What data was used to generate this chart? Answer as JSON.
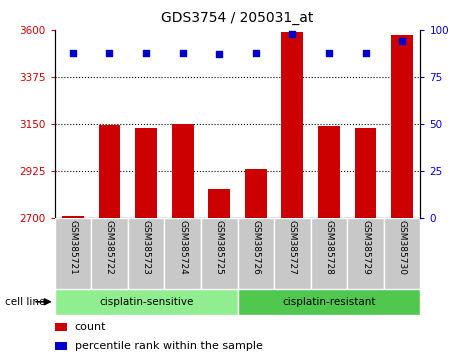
{
  "title": "GDS3754 / 205031_at",
  "samples": [
    "GSM385721",
    "GSM385722",
    "GSM385723",
    "GSM385724",
    "GSM385725",
    "GSM385726",
    "GSM385727",
    "GSM385728",
    "GSM385729",
    "GSM385730"
  ],
  "counts": [
    2710,
    3143,
    3130,
    3150,
    2840,
    2935,
    3590,
    3140,
    3130,
    3575
  ],
  "percentile_ranks": [
    88,
    88,
    88,
    88,
    87,
    88,
    98,
    88,
    88,
    94
  ],
  "ylim_left": [
    2700,
    3600
  ],
  "yticks_left": [
    2700,
    2925,
    3150,
    3375,
    3600
  ],
  "ylim_right": [
    0,
    100
  ],
  "yticks_right": [
    0,
    25,
    50,
    75,
    100
  ],
  "bar_color": "#cc0000",
  "dot_color": "#0000cc",
  "bar_width": 0.6,
  "groups": [
    {
      "label": "cisplatin-sensitive",
      "start": 0,
      "end": 5,
      "color": "#90ee90"
    },
    {
      "label": "cisplatin-resistant",
      "start": 5,
      "end": 10,
      "color": "#50c850"
    }
  ],
  "group_row_label": "cell line",
  "legend_count_label": "count",
  "legend_percentile_label": "percentile rank within the sample",
  "tick_label_color_left": "#cc0000",
  "tick_label_color_right": "#0000cc",
  "ticklabel_box_color": "#c8c8c8",
  "ticklabel_box_edge_color": "#ffffff"
}
